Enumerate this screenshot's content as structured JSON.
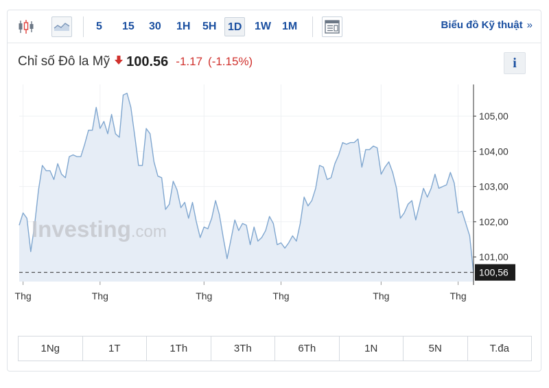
{
  "toolbar": {
    "intervals": [
      "5",
      "15",
      "30",
      "1H",
      "5H",
      "1D",
      "1W",
      "1M"
    ],
    "active_interval": "1D",
    "tech_link_label": "Biểu đồ Kỹ thuật",
    "tech_link_chevron": "»"
  },
  "quote": {
    "name": "Chỉ số Đô la Mỹ",
    "price": "100.56",
    "change": "-1.17",
    "change_pct": "(-1.15%)",
    "direction": "down",
    "info_label": "i"
  },
  "colors": {
    "accent": "#1a4fa0",
    "negative": "#d0312d",
    "line": "#7fa6cf",
    "fill": "#e6edf6",
    "label_bg": "#1c1c1c"
  },
  "watermark": {
    "brand": "Investing",
    "suffix": ".com"
  },
  "chart_data": {
    "type": "area",
    "ylim": [
      100.3,
      105.9
    ],
    "yticks": [
      "105,00",
      "104,00",
      "103,00",
      "102,00",
      "101,00"
    ],
    "ytick_values": [
      105,
      104,
      103,
      102,
      101
    ],
    "xtick_labels": [
      "Thg",
      "Thg",
      "Thg",
      "Thg",
      "Thg",
      "Thg"
    ],
    "last_value": 100.56,
    "last_label": "100,56",
    "grid": true,
    "values": [
      101.9,
      102.25,
      102.1,
      101.15,
      101.9,
      102.9,
      103.6,
      103.45,
      103.45,
      103.2,
      103.65,
      103.35,
      103.25,
      103.85,
      103.9,
      103.85,
      103.85,
      104.2,
      104.6,
      104.6,
      105.25,
      104.65,
      104.85,
      104.5,
      105.05,
      104.5,
      104.4,
      105.6,
      105.65,
      105.25,
      104.45,
      103.6,
      103.6,
      104.65,
      104.5,
      103.7,
      103.3,
      103.25,
      102.35,
      102.5,
      103.15,
      102.9,
      102.4,
      102.55,
      102.1,
      102.55,
      102.0,
      101.55,
      101.85,
      101.8,
      102.1,
      102.6,
      102.2,
      101.55,
      100.95,
      101.5,
      102.05,
      101.75,
      101.95,
      101.9,
      101.35,
      101.85,
      101.45,
      101.55,
      101.75,
      102.15,
      101.95,
      101.35,
      101.4,
      101.25,
      101.4,
      101.6,
      101.45,
      101.95,
      102.7,
      102.45,
      102.6,
      102.95,
      103.6,
      103.55,
      103.2,
      103.25,
      103.65,
      103.9,
      104.25,
      104.2,
      104.25,
      104.25,
      104.35,
      103.55,
      104.05,
      104.05,
      104.15,
      104.1,
      103.35,
      103.55,
      103.7,
      103.4,
      102.95,
      102.1,
      102.25,
      102.5,
      102.6,
      102.05,
      102.5,
      102.95,
      102.7,
      102.95,
      103.35,
      102.95,
      103.0,
      103.05,
      103.4,
      103.1,
      102.25,
      102.3,
      101.95,
      101.6,
      100.55
    ]
  },
  "range_buttons": [
    "1Ng",
    "1T",
    "1Th",
    "3Th",
    "6Th",
    "1N",
    "5N",
    "T.đa"
  ]
}
